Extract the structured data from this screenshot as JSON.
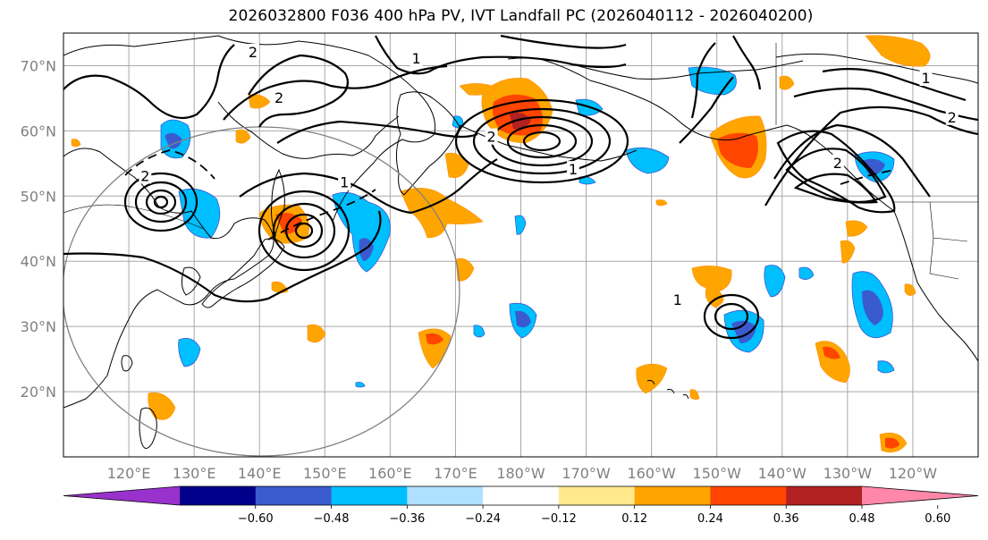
{
  "title": "2026032800 F036 400 hPa PV, IVT Landfall PC (2026040112 - 2026040200)",
  "map": {
    "lon_range": [
      110,
      250
    ],
    "lat_range": [
      10,
      75
    ],
    "lat_ticks": [
      {
        "value": 20,
        "label": "20°N"
      },
      {
        "value": 30,
        "label": "30°N"
      },
      {
        "value": 40,
        "label": "40°N"
      },
      {
        "value": 50,
        "label": "50°N"
      },
      {
        "value": 60,
        "label": "60°N"
      },
      {
        "value": 70,
        "label": "70°N"
      }
    ],
    "lon_ticks": [
      {
        "value": 120,
        "label": "120°E"
      },
      {
        "value": 130,
        "label": "130°E"
      },
      {
        "value": 140,
        "label": "140°E"
      },
      {
        "value": 150,
        "label": "150°E"
      },
      {
        "value": 160,
        "label": "160°E"
      },
      {
        "value": 170,
        "label": "170°E"
      },
      {
        "value": 180,
        "label": "180°W"
      },
      {
        "value": 190,
        "label": "170°W"
      },
      {
        "value": 200,
        "label": "160°W"
      },
      {
        "value": 210,
        "label": "150°W"
      },
      {
        "value": 220,
        "label": "140°W"
      },
      {
        "value": 230,
        "label": "130°W"
      },
      {
        "value": 240,
        "label": "120°W"
      }
    ],
    "contour_labels": [
      {
        "text": "1",
        "lon": 164,
        "lat": 71
      },
      {
        "text": "2",
        "lon": 139,
        "lat": 72
      },
      {
        "text": "2",
        "lon": 143,
        "lat": 65
      },
      {
        "text": "1",
        "lon": 153,
        "lat": 52
      },
      {
        "text": "2",
        "lon": 175.5,
        "lat": 59
      },
      {
        "text": "1",
        "lon": 188,
        "lat": 54
      },
      {
        "text": "2",
        "lon": 122.5,
        "lat": 53
      },
      {
        "text": "1",
        "lon": 204,
        "lat": 34
      },
      {
        "text": "1",
        "lon": 242,
        "lat": 68
      },
      {
        "text": "2",
        "lon": 246,
        "lat": 62
      },
      {
        "text": "2",
        "lon": 228.5,
        "lat": 55
      }
    ]
  },
  "colorbar": {
    "colors": [
      "#9932cc",
      "#00008b",
      "#3a5bd0",
      "#00bfff",
      "#b0e0ff",
      "#ffffff",
      "#ffe98a",
      "#ffa500",
      "#ff4500",
      "#b22222",
      "#ff88aa"
    ],
    "tick_labels": [
      "−0.60",
      "−0.48",
      "−0.36",
      "−0.24",
      "−0.12",
      "0.12",
      "0.24",
      "0.36",
      "0.48",
      "0.60"
    ]
  }
}
